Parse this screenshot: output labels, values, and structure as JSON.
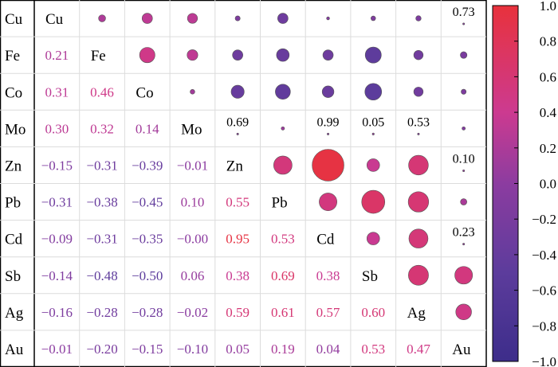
{
  "chart_data": {
    "type": "heatmap",
    "variables": [
      "Cu",
      "Fe",
      "Co",
      "Mo",
      "Zn",
      "Pb",
      "Cd",
      "Sb",
      "Ag",
      "Au"
    ],
    "lower_triangle": [
      [
        "0.21"
      ],
      [
        "0.31",
        "0.46"
      ],
      [
        "0.30",
        "0.32",
        "0.14"
      ],
      [
        "−0.15",
        "−0.31",
        "−0.39",
        "−0.01"
      ],
      [
        "−0.31",
        "−0.38",
        "−0.45",
        "0.10",
        "0.55"
      ],
      [
        "−0.09",
        "−0.31",
        "−0.35",
        "−0.00",
        "0.95",
        "0.53"
      ],
      [
        "−0.14",
        "−0.48",
        "−0.50",
        "0.06",
        "0.38",
        "0.69",
        "0.38"
      ],
      [
        "−0.16",
        "−0.28",
        "−0.28",
        "−0.02",
        "0.59",
        "0.61",
        "0.57",
        "0.60"
      ],
      [
        "−0.01",
        "−0.20",
        "−0.15",
        "−0.10",
        "0.05",
        "0.19",
        "0.04",
        "0.53",
        "0.47"
      ]
    ],
    "upper_labels": [
      {
        "row": 0,
        "col": 9,
        "text": "0.73"
      },
      {
        "row": 3,
        "col": 4,
        "text": "0.69"
      },
      {
        "row": 3,
        "col": 6,
        "text": "0.99"
      },
      {
        "row": 3,
        "col": 7,
        "text": "0.05"
      },
      {
        "row": 3,
        "col": 8,
        "text": "0.53"
      },
      {
        "row": 4,
        "col": 9,
        "text": "0.10"
      },
      {
        "row": 6,
        "col": 9,
        "text": "0.23"
      }
    ],
    "colorbar": {
      "range": [
        -1,
        1
      ],
      "ticks": [
        "1.0",
        "0.8",
        "0.6",
        "0.4",
        "0.2",
        "0.0",
        "−0.2",
        "−0.4",
        "−0.6",
        "−0.8",
        "−1.0"
      ],
      "colors": [
        "#3d2d8a",
        "#5a3b9c",
        "#cc3a90",
        "#e8323c"
      ]
    }
  }
}
